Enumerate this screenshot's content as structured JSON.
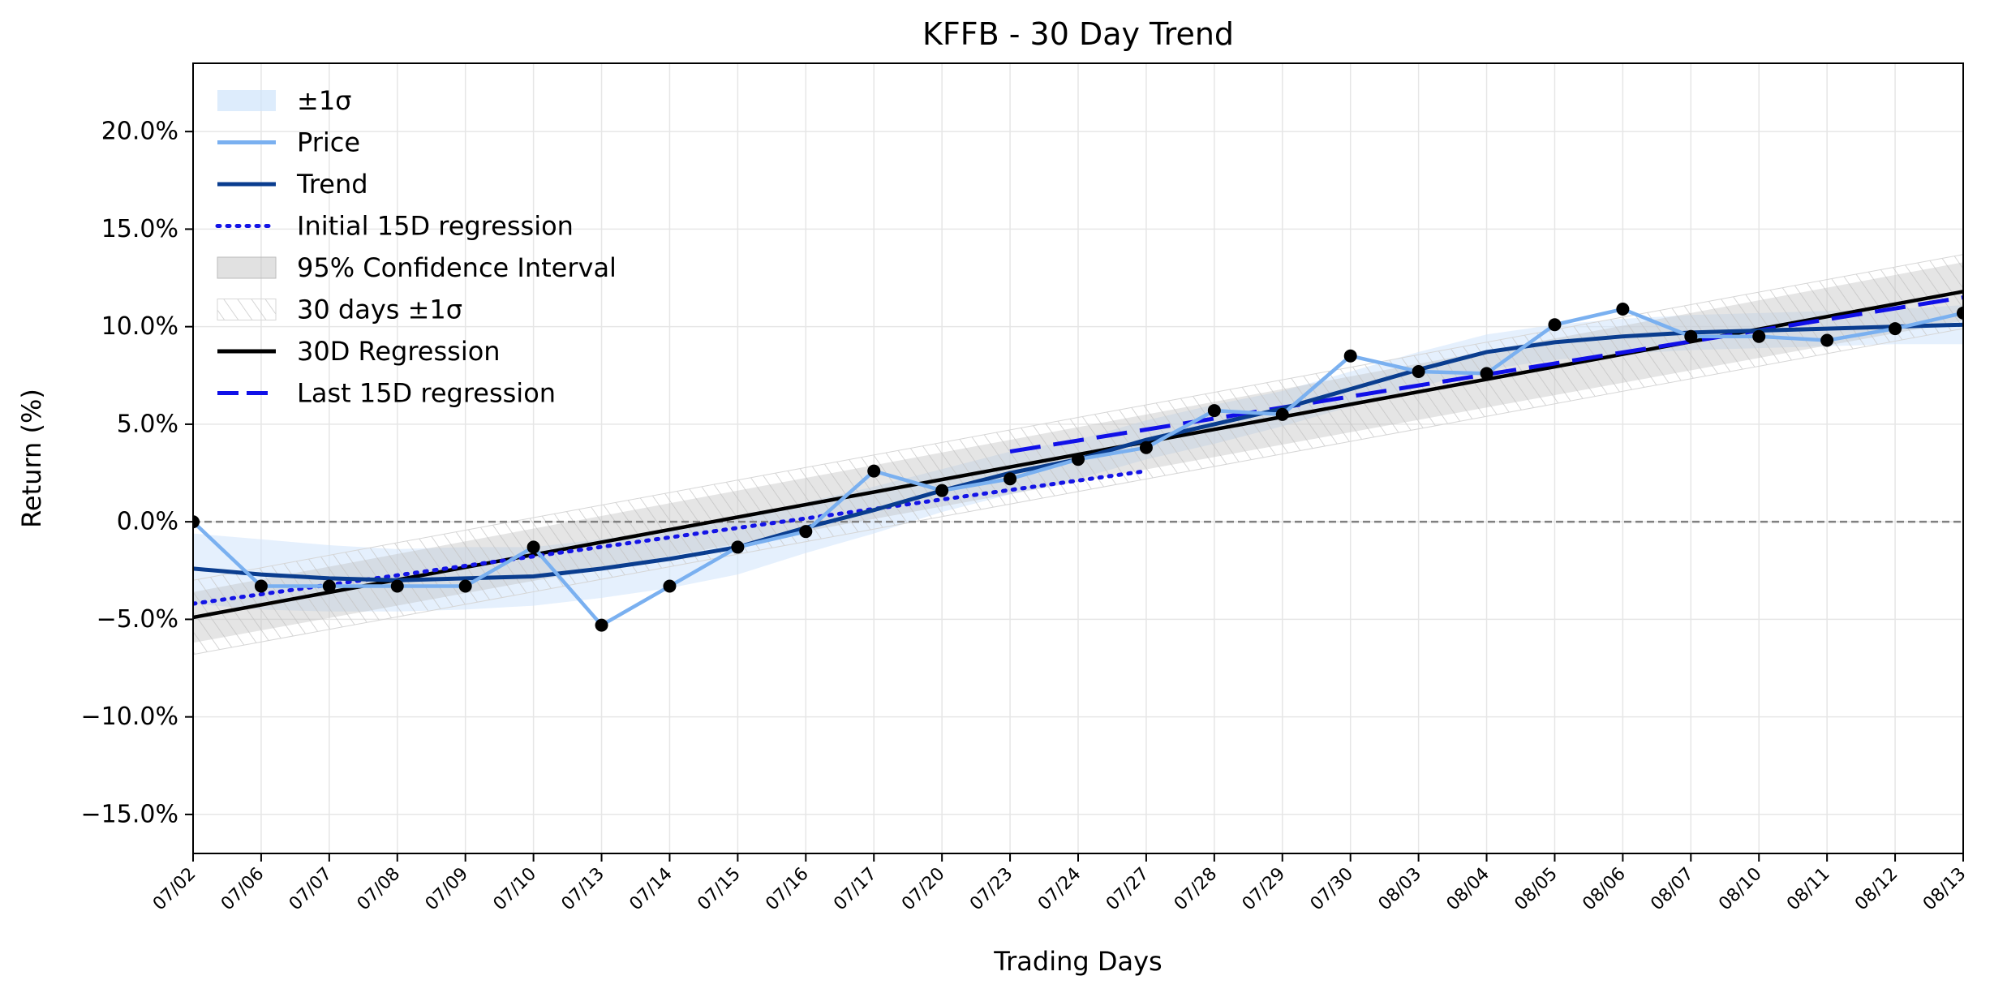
{
  "chart_data": {
    "type": "line",
    "title": "KFFB - 30 Day Trend",
    "xlabel": "Trading Days",
    "ylabel": "Return (%)",
    "ylim": [
      -17.0,
      23.5
    ],
    "yticks": [
      -15,
      -10,
      -5,
      0,
      5,
      10,
      15,
      20
    ],
    "ytick_labels": [
      "−15.0%",
      "−10.0%",
      "−5.0%",
      "0.0%",
      "5.0%",
      "10.0%",
      "15.0%",
      "20.0%"
    ],
    "grid": true,
    "legend_position": "upper-left",
    "categories": [
      "07/02",
      "07/06",
      "07/07",
      "07/08",
      "07/09",
      "07/10",
      "07/13",
      "07/14",
      "07/15",
      "07/16",
      "07/17",
      "07/20",
      "07/23",
      "07/24",
      "07/27",
      "07/28",
      "07/29",
      "07/30",
      "08/03",
      "08/04",
      "08/05",
      "08/06",
      "08/07",
      "08/10",
      "08/11",
      "08/12",
      "08/13"
    ],
    "legend": [
      "±1σ",
      "Price",
      "Trend",
      "Initial 15D regression",
      "95% Confidence Interval",
      "30 days ±1σ",
      "30D Regression",
      "Last 15D regression"
    ],
    "series": [
      {
        "name": "Price",
        "values": [
          0.0,
          -3.3,
          -3.3,
          -3.3,
          -3.3,
          -1.3,
          -5.3,
          -3.3,
          -1.3,
          -0.5,
          2.6,
          1.6,
          2.2,
          3.2,
          3.8,
          5.7,
          5.5,
          8.5,
          7.7,
          7.6,
          10.1,
          10.9,
          9.5,
          9.5,
          9.3,
          9.9,
          10.7
        ]
      },
      {
        "name": "Trend",
        "values": [
          -2.4,
          -2.7,
          -2.9,
          -3.0,
          -2.9,
          -2.8,
          -2.4,
          -1.9,
          -1.3,
          -0.3,
          0.6,
          1.6,
          2.5,
          3.2,
          4.2,
          5.0,
          5.8,
          6.8,
          7.8,
          8.7,
          9.2,
          9.5,
          9.7,
          9.8,
          9.9,
          10.0,
          10.1
        ]
      },
      {
        "name": "±1σ",
        "lower": [
          -4.2,
          -4.5,
          -4.6,
          -4.6,
          -4.5,
          -4.3,
          -3.9,
          -3.4,
          -2.7,
          -1.6,
          -0.6,
          0.5,
          1.4,
          2.2,
          3.2,
          4.0,
          4.9,
          5.9,
          6.9,
          7.8,
          8.3,
          8.6,
          8.8,
          8.9,
          9.0,
          9.1,
          9.1
        ],
        "upper": [
          -0.6,
          -0.9,
          -1.2,
          -1.4,
          -1.3,
          -1.3,
          -0.9,
          -0.4,
          0.1,
          1.0,
          1.8,
          2.7,
          3.6,
          4.2,
          5.2,
          6.0,
          6.7,
          7.7,
          8.7,
          9.6,
          10.1,
          10.4,
          10.6,
          10.7,
          10.8,
          10.9,
          11.1
        ]
      },
      {
        "name": "30D Regression",
        "start": -4.9,
        "end": 11.8
      },
      {
        "name": "95% Confidence Interval",
        "start_lower": -6.2,
        "start_upper": -3.6,
        "end_lower": 10.3,
        "end_upper": 13.3
      },
      {
        "name": "30 days ±1σ",
        "start_lower": -6.8,
        "start_upper": -3.0,
        "end_lower": 9.9,
        "end_upper": 13.7
      },
      {
        "name": "Initial 15D regression",
        "x_range": [
          "07/02",
          "07/27"
        ],
        "start": -4.2,
        "end": 2.6
      },
      {
        "name": "Last 15D regression",
        "x_range": [
          "07/23",
          "08/13"
        ],
        "start": 3.6,
        "end": 11.5
      }
    ],
    "reference_line": {
      "y": 0,
      "style": "dashed"
    }
  },
  "colors": {
    "price": "#7ab0f0",
    "trend": "#0a3d8f",
    "regression": "#000000",
    "initial15": "#1414e6",
    "last15": "#1010e8",
    "sigma_fill": "#cfe4fb",
    "ci_fill": "#bdbdbd",
    "grid": "#e6e6e6",
    "zero_line": "#808080"
  }
}
